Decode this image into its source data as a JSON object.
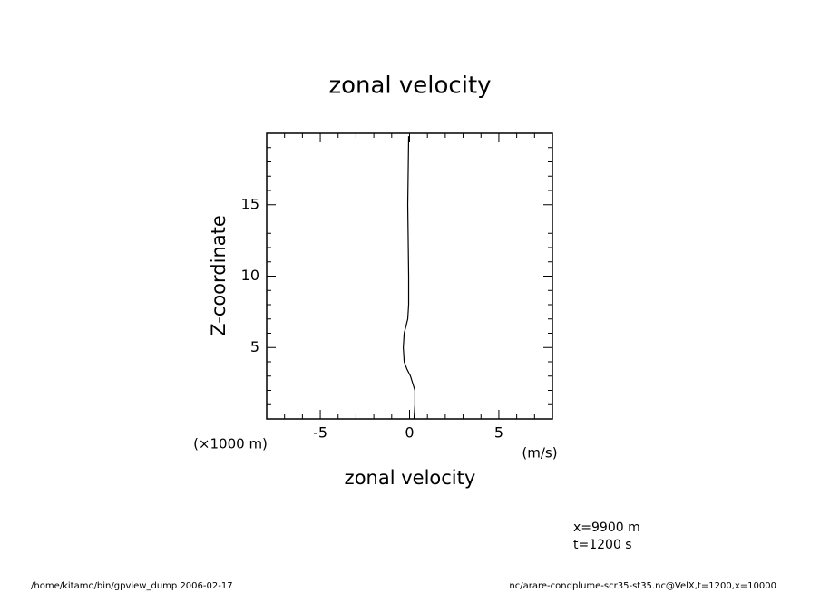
{
  "chart_data": {
    "type": "line",
    "title": "zonal velocity",
    "xlabel": "zonal velocity",
    "xunit": "(m/s)",
    "ylabel": "Z-coordinate",
    "yunit": "(×1000 m)",
    "annotations": [
      "x=9900 m",
      "t=1200 s"
    ],
    "footer_left": "/home/kitamo/bin/gpview_dump  2006-02-17",
    "footer_right": "nc/arare-condplume-scr35-st35.nc@VelX,t=1200,x=10000",
    "x": [
      0.25,
      0.3,
      0.3,
      0.05,
      -0.15,
      -0.3,
      -0.35,
      -0.3,
      -0.2,
      -0.1,
      -0.05,
      -0.05,
      -0.1,
      -0.05
    ],
    "y": [
      0,
      1,
      2,
      3,
      3.5,
      4,
      5,
      6,
      6.5,
      7,
      8,
      10,
      15,
      19.8
    ],
    "color": "#000000",
    "xlim": [
      -8,
      8
    ],
    "xticks": [
      -5,
      0,
      5
    ],
    "xminorticks": [
      -7,
      -6,
      -4,
      -3,
      -2,
      -1,
      1,
      2,
      3,
      4,
      6,
      7
    ],
    "ylim": [
      0,
      20
    ],
    "yticks": [
      5,
      10,
      15
    ],
    "yminorticks": [
      1,
      2,
      3,
      4,
      6,
      7,
      8,
      9,
      11,
      12,
      13,
      14,
      16,
      17,
      18,
      19
    ]
  }
}
